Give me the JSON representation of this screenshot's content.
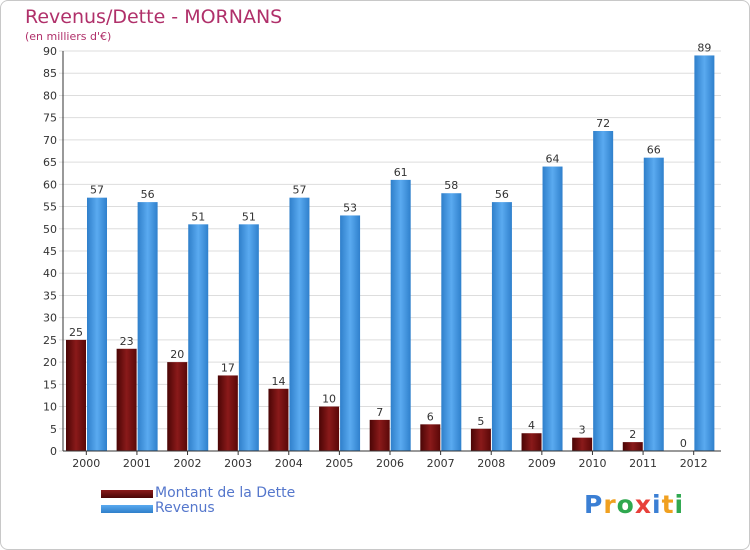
{
  "header": {
    "title": "Revenus/Dette - MORNANS",
    "subtitle": "(en milliers d'€)"
  },
  "chart_data": {
    "type": "bar",
    "categories": [
      "2000",
      "2001",
      "2002",
      "2003",
      "2004",
      "2005",
      "2006",
      "2007",
      "2008",
      "2009",
      "2010",
      "2011",
      "2012"
    ],
    "series": [
      {
        "name": "Montant de la Dette",
        "color": "#6b0a0a",
        "values": [
          25,
          23,
          20,
          17,
          14,
          10,
          7,
          6,
          5,
          4,
          3,
          2,
          0
        ]
      },
      {
        "name": "Revenus",
        "color": "#3d8fd9",
        "values": [
          57,
          56,
          51,
          51,
          57,
          53,
          61,
          58,
          56,
          64,
          72,
          66,
          89
        ]
      }
    ],
    "ylim": [
      0,
      90
    ],
    "yticks": [
      0,
      5,
      10,
      15,
      20,
      25,
      30,
      35,
      40,
      45,
      50,
      55,
      60,
      65,
      70,
      75,
      80,
      85,
      90
    ],
    "grid": true,
    "legend": "bottom-left"
  },
  "legend": {
    "debt_label": "Montant de la Dette",
    "revenue_label": "Revenus"
  },
  "logo": {
    "text": "Proxiti",
    "letters": [
      "P",
      "r",
      "o",
      "x",
      "i",
      "t",
      "i"
    ],
    "colors": [
      "#3b7fd4",
      "#f0a020",
      "#2fa84f",
      "#e8403a",
      "#3b7fd4",
      "#f0a020",
      "#2fa84f"
    ]
  }
}
